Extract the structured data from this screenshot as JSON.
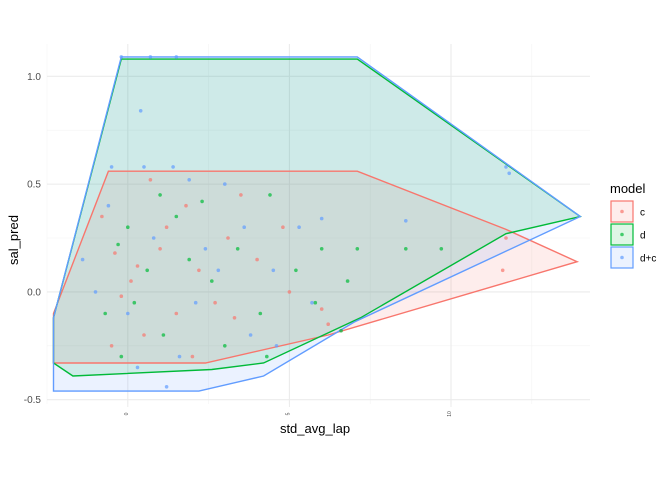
{
  "chart_data": {
    "type": "scatter",
    "xlabel": "std_avg_lap",
    "ylabel": "sal_pred",
    "xlim": [
      -2.5,
      14.3
    ],
    "ylim": [
      -0.52,
      1.15
    ],
    "x_ticks": [
      0,
      5,
      10
    ],
    "x_tick_labels": [
      "0",
      "5",
      "10"
    ],
    "y_ticks": [
      -0.5,
      0.0,
      0.5,
      1.0
    ],
    "y_tick_labels": [
      "-0.5",
      "0.0",
      "0.5",
      "1.0"
    ],
    "grid": true,
    "legend": {
      "title": "model",
      "placement": "right",
      "entries": [
        "c",
        "d",
        "d+c"
      ]
    },
    "series": [
      {
        "name": "c",
        "color": "#F8766D",
        "hull": [
          [
            -2.3,
            -0.1
          ],
          [
            -0.6,
            0.56
          ],
          [
            7.1,
            0.56
          ],
          [
            11.7,
            0.29
          ],
          [
            13.9,
            0.14
          ],
          [
            6.2,
            -0.2
          ],
          [
            2.4,
            -0.33
          ],
          [
            -2.3,
            -0.33
          ]
        ],
        "points": [
          [
            -0.4,
            0.18
          ],
          [
            0.1,
            0.05
          ],
          [
            -0.2,
            -0.02
          ],
          [
            0.3,
            0.12
          ],
          [
            1.0,
            0.2
          ],
          [
            1.5,
            -0.1
          ],
          [
            2.2,
            0.1
          ],
          [
            3.1,
            0.25
          ],
          [
            4.0,
            0.15
          ],
          [
            5.0,
            0.0
          ],
          [
            6.2,
            -0.15
          ],
          [
            3.5,
            0.45
          ],
          [
            1.8,
            0.4
          ],
          [
            0.5,
            -0.2
          ],
          [
            -0.8,
            0.35
          ],
          [
            2.7,
            -0.05
          ],
          [
            4.8,
            0.3
          ],
          [
            11.7,
            0.25
          ],
          [
            11.6,
            0.1
          ],
          [
            6.0,
            -0.08
          ],
          [
            0.7,
            0.52
          ],
          [
            -0.5,
            -0.25
          ],
          [
            2.0,
            -0.3
          ],
          [
            1.2,
            0.3
          ],
          [
            3.3,
            -0.12
          ]
        ]
      },
      {
        "name": "d",
        "color": "#00BA38",
        "hull": [
          [
            -2.3,
            -0.12
          ],
          [
            -0.2,
            1.08
          ],
          [
            7.1,
            1.08
          ],
          [
            14.0,
            0.35
          ],
          [
            11.7,
            0.27
          ],
          [
            7.2,
            -0.12
          ],
          [
            4.2,
            -0.33
          ],
          [
            2.6,
            -0.36
          ],
          [
            -1.7,
            -0.39
          ],
          [
            -2.3,
            -0.33
          ]
        ],
        "points": [
          [
            -0.3,
            0.22
          ],
          [
            0.2,
            -0.05
          ],
          [
            0.6,
            0.1
          ],
          [
            1.1,
            -0.2
          ],
          [
            1.9,
            0.15
          ],
          [
            2.6,
            0.05
          ],
          [
            3.4,
            0.2
          ],
          [
            4.1,
            -0.1
          ],
          [
            5.2,
            0.1
          ],
          [
            6.0,
            0.2
          ],
          [
            7.1,
            0.2
          ],
          [
            8.6,
            0.2
          ],
          [
            9.7,
            0.2
          ],
          [
            4.3,
            -0.3
          ],
          [
            0.0,
            0.3
          ],
          [
            -0.7,
            -0.1
          ],
          [
            1.5,
            0.35
          ],
          [
            3.0,
            -0.25
          ],
          [
            5.8,
            -0.05
          ],
          [
            6.8,
            0.05
          ],
          [
            2.3,
            0.42
          ],
          [
            1.0,
            0.45
          ],
          [
            -0.2,
            -0.3
          ],
          [
            4.4,
            0.45
          ],
          [
            6.6,
            -0.18
          ]
        ]
      },
      {
        "name": "d+c",
        "color": "#619CFF",
        "hull": [
          [
            -2.3,
            -0.12
          ],
          [
            -0.2,
            1.09
          ],
          [
            7.1,
            1.09
          ],
          [
            14.0,
            0.35
          ],
          [
            7.0,
            -0.14
          ],
          [
            4.2,
            -0.39
          ],
          [
            2.2,
            -0.46
          ],
          [
            -2.3,
            -0.46
          ]
        ],
        "points": [
          [
            -0.5,
            0.58
          ],
          [
            0.5,
            0.58
          ],
          [
            1.4,
            0.58
          ],
          [
            0.4,
            0.84
          ],
          [
            -0.2,
            1.09
          ],
          [
            0.7,
            1.09
          ],
          [
            1.5,
            1.09
          ],
          [
            -1.0,
            0.0
          ],
          [
            0.0,
            -0.1
          ],
          [
            0.8,
            0.25
          ],
          [
            1.6,
            -0.3
          ],
          [
            2.4,
            0.2
          ],
          [
            3.0,
            0.5
          ],
          [
            3.8,
            -0.2
          ],
          [
            4.5,
            0.1
          ],
          [
            5.3,
            0.3
          ],
          [
            5.7,
            -0.05
          ],
          [
            6.0,
            0.34
          ],
          [
            8.6,
            0.33
          ],
          [
            11.7,
            0.58
          ],
          [
            11.8,
            0.55
          ],
          [
            1.2,
            -0.44
          ],
          [
            -1.4,
            0.15
          ],
          [
            2.1,
            -0.05
          ],
          [
            3.6,
            0.3
          ],
          [
            0.3,
            -0.35
          ],
          [
            -0.6,
            0.4
          ],
          [
            2.8,
            0.1
          ],
          [
            4.6,
            -0.25
          ],
          [
            1.9,
            0.52
          ]
        ]
      }
    ]
  }
}
